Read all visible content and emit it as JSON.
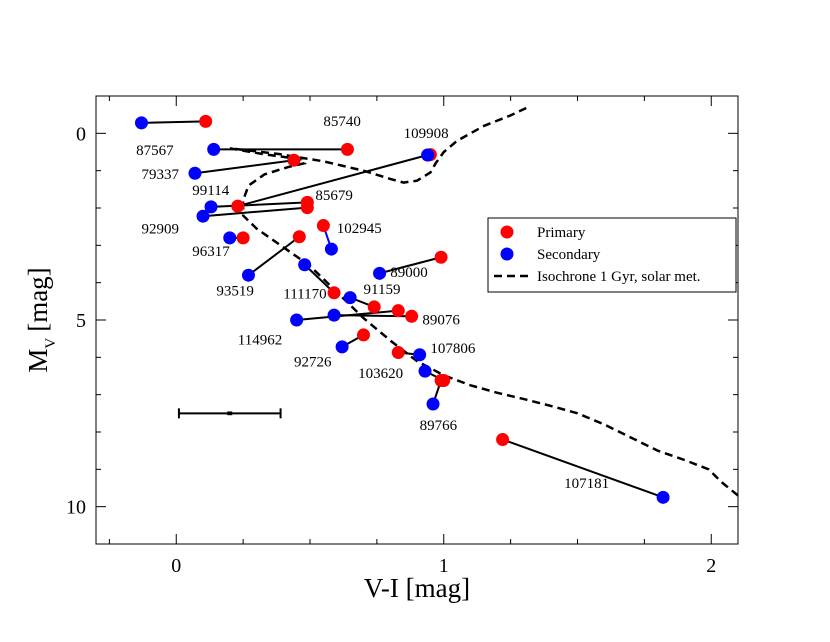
{
  "chart_data": {
    "type": "scatter",
    "xlabel": "V-I [mag]",
    "ylabel_main": "M",
    "ylabel_sub": "V",
    "ylabel_unit": "[mag]",
    "xlim": [
      -0.3,
      2.1
    ],
    "ylim": [
      11.0,
      -1.0
    ],
    "y_inverted": true,
    "x_ticks": [
      0,
      1,
      2
    ],
    "x_tick_labels": [
      "0",
      "1",
      "2"
    ],
    "y_ticks": [
      0,
      5,
      10
    ],
    "y_tick_labels": [
      "0",
      "5",
      "10"
    ],
    "legend": {
      "placement": "right-middle",
      "entries": [
        {
          "label": "Primary",
          "marker": "circle",
          "color": "#ff0000"
        },
        {
          "label": "Secondary",
          "marker": "circle",
          "color": "#0000ff"
        },
        {
          "label": "Isochrone 1 Gyr, solar met.",
          "line": "dashed",
          "color": "#000000"
        }
      ]
    },
    "colors": {
      "primary": "#ff0000",
      "secondary": "#0000ff",
      "line": "#000000",
      "highlight_link": "#0000ff"
    },
    "pairs": [
      {
        "id": "87567",
        "primary": [
          0.11,
          -0.32
        ],
        "secondary": [
          -0.13,
          -0.28
        ],
        "label_pos": [
          -0.15,
          0.58
        ]
      },
      {
        "id": "85740",
        "primary": [
          0.64,
          0.43
        ],
        "secondary": [
          0.14,
          0.43
        ],
        "label_pos": [
          0.55,
          -0.2
        ]
      },
      {
        "id": "109908",
        "primary": [
          0.95,
          0.57
        ],
        "secondary": [
          0.94,
          0.58
        ],
        "label_pos": [
          0.85,
          0.12
        ]
      },
      {
        "id": "79337",
        "primary": [
          0.44,
          0.72
        ],
        "secondary": [
          0.07,
          1.07
        ],
        "label_pos": [
          -0.13,
          1.22
        ]
      },
      {
        "id": "99114",
        "primary": [
          0.23,
          1.95
        ],
        "secondary": [
          0.94,
          0.58
        ],
        "label_pos": [
          0.06,
          1.65
        ]
      },
      {
        "id": "85679",
        "primary": [
          0.49,
          1.85
        ],
        "secondary": [
          0.13,
          1.97
        ],
        "label_pos": [
          0.52,
          1.78
        ]
      },
      {
        "id": "92909",
        "primary": [
          0.49,
          1.99
        ],
        "secondary": [
          0.1,
          2.22
        ],
        "label_pos": [
          -0.13,
          2.68
        ]
      },
      {
        "id": "102945",
        "primary": [
          0.55,
          2.47
        ],
        "secondary": [
          0.58,
          3.1
        ],
        "label_pos": [
          0.6,
          2.67
        ],
        "link_color": "#0000ff"
      },
      {
        "id": "96317",
        "primary": [
          0.25,
          2.8
        ],
        "secondary": [
          0.2,
          2.8
        ],
        "label_pos": [
          0.06,
          3.28
        ]
      },
      {
        "id": "89000",
        "primary": [
          0.99,
          3.32
        ],
        "secondary": [
          0.76,
          3.75
        ],
        "label_pos": [
          0.8,
          3.85
        ]
      },
      {
        "id": "93519",
        "primary": [
          0.46,
          2.77
        ],
        "secondary": [
          0.27,
          3.8
        ],
        "label_pos": [
          0.15,
          4.35
        ]
      },
      {
        "id": "111170",
        "primary": [
          0.59,
          4.27
        ],
        "secondary": [
          0.48,
          3.52
        ],
        "label_pos": [
          0.4,
          4.42
        ]
      },
      {
        "id": "91159",
        "primary": [
          0.74,
          4.65
        ],
        "secondary": [
          0.65,
          4.4
        ],
        "label_pos": [
          0.7,
          4.3
        ]
      },
      {
        "id": "89076",
        "primary": [
          0.88,
          4.9
        ],
        "secondary": [
          0.59,
          4.87
        ],
        "label_pos": [
          0.92,
          5.12
        ]
      },
      {
        "id": "114962",
        "primary": [
          0.83,
          4.75
        ],
        "secondary": [
          0.45,
          5.0
        ],
        "label_pos": [
          0.23,
          5.65
        ]
      },
      {
        "id": "92726",
        "primary": [
          0.7,
          5.4
        ],
        "secondary": [
          0.62,
          5.72
        ],
        "label_pos": [
          0.44,
          6.25
        ]
      },
      {
        "id": "107806",
        "primary": [
          0.83,
          5.87
        ],
        "secondary": [
          0.91,
          5.93
        ],
        "label_pos": [
          0.95,
          5.88
        ]
      },
      {
        "id": "103620",
        "primary": [
          1.0,
          6.62
        ],
        "secondary": [
          0.93,
          6.37
        ],
        "label_pos": [
          0.68,
          6.55
        ]
      },
      {
        "id": "89766",
        "primary": [
          0.99,
          6.62
        ],
        "secondary": [
          0.96,
          7.25
        ],
        "label_pos": [
          0.91,
          7.95
        ]
      },
      {
        "id": "107181",
        "primary": [
          1.22,
          8.2
        ],
        "secondary": [
          1.82,
          9.75
        ],
        "label_pos": [
          1.45,
          9.5
        ]
      }
    ],
    "isochrone": [
      [
        2.1,
        9.7
      ],
      [
        2.04,
        9.35
      ],
      [
        1.99,
        9.0
      ],
      [
        1.9,
        8.75
      ],
      [
        1.8,
        8.5
      ],
      [
        1.7,
        8.15
      ],
      [
        1.6,
        7.8
      ],
      [
        1.5,
        7.5
      ],
      [
        1.4,
        7.3
      ],
      [
        1.3,
        7.12
      ],
      [
        1.2,
        6.95
      ],
      [
        1.1,
        6.75
      ],
      [
        1.0,
        6.48
      ],
      [
        0.9,
        6.1
      ],
      [
        0.8,
        5.55
      ],
      [
        0.7,
        4.95
      ],
      [
        0.6,
        4.25
      ],
      [
        0.5,
        3.55
      ],
      [
        0.4,
        3.05
      ],
      [
        0.3,
        2.55
      ],
      [
        0.25,
        2.2
      ],
      [
        0.25,
        1.8
      ],
      [
        0.27,
        1.4
      ],
      [
        0.33,
        1.1
      ],
      [
        0.42,
        0.9
      ],
      [
        0.48,
        0.8
      ],
      [
        0.47,
        0.7
      ],
      [
        0.32,
        0.55
      ],
      [
        0.2,
        0.4
      ],
      [
        0.38,
        0.55
      ],
      [
        0.55,
        0.75
      ],
      [
        0.7,
        1.0
      ],
      [
        0.8,
        1.22
      ],
      [
        0.85,
        1.32
      ],
      [
        0.9,
        1.27
      ],
      [
        0.95,
        1.05
      ],
      [
        0.97,
        0.8
      ],
      [
        1.0,
        0.5
      ],
      [
        1.05,
        0.2
      ],
      [
        1.15,
        -0.2
      ],
      [
        1.25,
        -0.48
      ],
      [
        1.32,
        -0.72
      ]
    ],
    "error_bar": {
      "x": 0.2,
      "y": 7.5,
      "xerr": 0.19,
      "yerr": 0.05
    }
  }
}
